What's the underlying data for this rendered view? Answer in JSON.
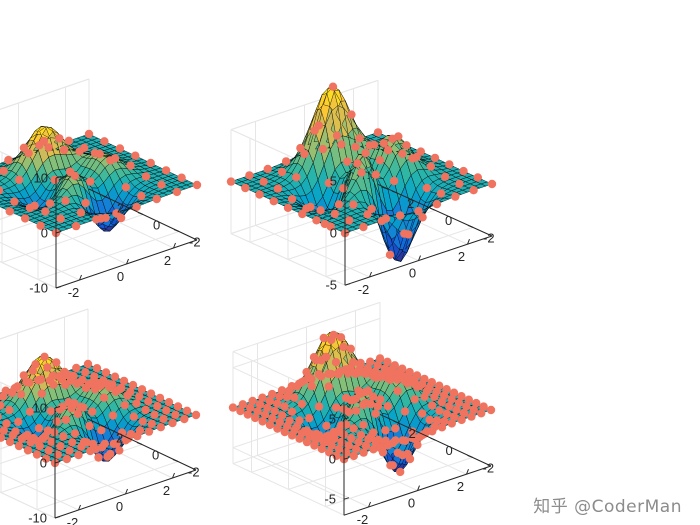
{
  "watermark": "知乎 @CoderMan",
  "colormap": [
    "#352a87",
    "#0f5cdd",
    "#1481d6",
    "#06a4ca",
    "#2eb7a4",
    "#87bf77",
    "#d1bb59",
    "#fec832",
    "#f9fb0e"
  ],
  "colors": {
    "marker": "#f0735f",
    "mesh": "#000000",
    "axis": "#262626",
    "grid": "#e6e6e6"
  },
  "chart_data": [
    {
      "type": "surface",
      "function": "peaks",
      "mesh": 25,
      "marker_grid": 8,
      "xlim": [
        -3,
        3
      ],
      "ylim": [
        -3,
        3
      ],
      "zlim": [
        -10,
        10
      ],
      "xticks": [
        -2,
        0,
        2
      ],
      "yticks": [
        -2,
        0,
        2
      ],
      "zticks": [
        -10,
        0,
        10
      ],
      "xtick_labels": [
        "-2",
        "0",
        "2"
      ],
      "ytick_labels": [
        "-2",
        "0",
        "2"
      ],
      "ztick_labels": [
        "-10",
        "0",
        "10"
      ],
      "title": "",
      "xlabel": "",
      "ylabel": "",
      "zlabel": ""
    },
    {
      "type": "surface",
      "function": "peaks",
      "mesh": 25,
      "marker_grid": 9,
      "xlim": [
        -3,
        3
      ],
      "ylim": [
        -3,
        3
      ],
      "zlim": [
        -5,
        5
      ],
      "xticks": [
        -2,
        0,
        2
      ],
      "yticks": [
        -2,
        0,
        2
      ],
      "zticks": [
        -5,
        0,
        5
      ],
      "xtick_labels": [
        "-2",
        "0",
        "2"
      ],
      "ytick_labels": [
        "-2",
        "0",
        "2"
      ],
      "ztick_labels": [
        "-5",
        "0",
        "5"
      ],
      "title": "",
      "xlabel": "",
      "ylabel": "",
      "zlabel": ""
    },
    {
      "type": "surface",
      "function": "peaks",
      "mesh": 25,
      "marker_grid": 13,
      "xlim": [
        -3,
        3
      ],
      "ylim": [
        -3,
        3
      ],
      "zlim": [
        -10,
        10
      ],
      "xticks": [
        -2,
        0,
        2
      ],
      "yticks": [
        -2,
        0,
        2
      ],
      "zticks": [
        -10,
        0,
        10
      ],
      "xtick_labels": [
        "-2",
        "0",
        "2"
      ],
      "ytick_labels": [
        "-2",
        "0",
        "2"
      ],
      "ztick_labels": [
        "-10",
        "0",
        "10"
      ],
      "title": "",
      "xlabel": "",
      "ylabel": "",
      "zlabel": ""
    },
    {
      "type": "surface",
      "function": "peaks",
      "mesh": 25,
      "marker_grid": 16,
      "xlim": [
        -3,
        3
      ],
      "ylim": [
        -3,
        3
      ],
      "zlim": [
        -7,
        7
      ],
      "xticks": [
        -2,
        0,
        2
      ],
      "yticks": [
        -2,
        0,
        2
      ],
      "zticks": [
        -5,
        0,
        5
      ],
      "xtick_labels": [
        "-2",
        "0",
        "2"
      ],
      "ytick_labels": [
        "-2",
        "0",
        "2"
      ],
      "ztick_labels": [
        "-5",
        "0",
        "5"
      ],
      "title": "",
      "xlabel": "",
      "ylabel": "",
      "zlabel": ""
    }
  ]
}
